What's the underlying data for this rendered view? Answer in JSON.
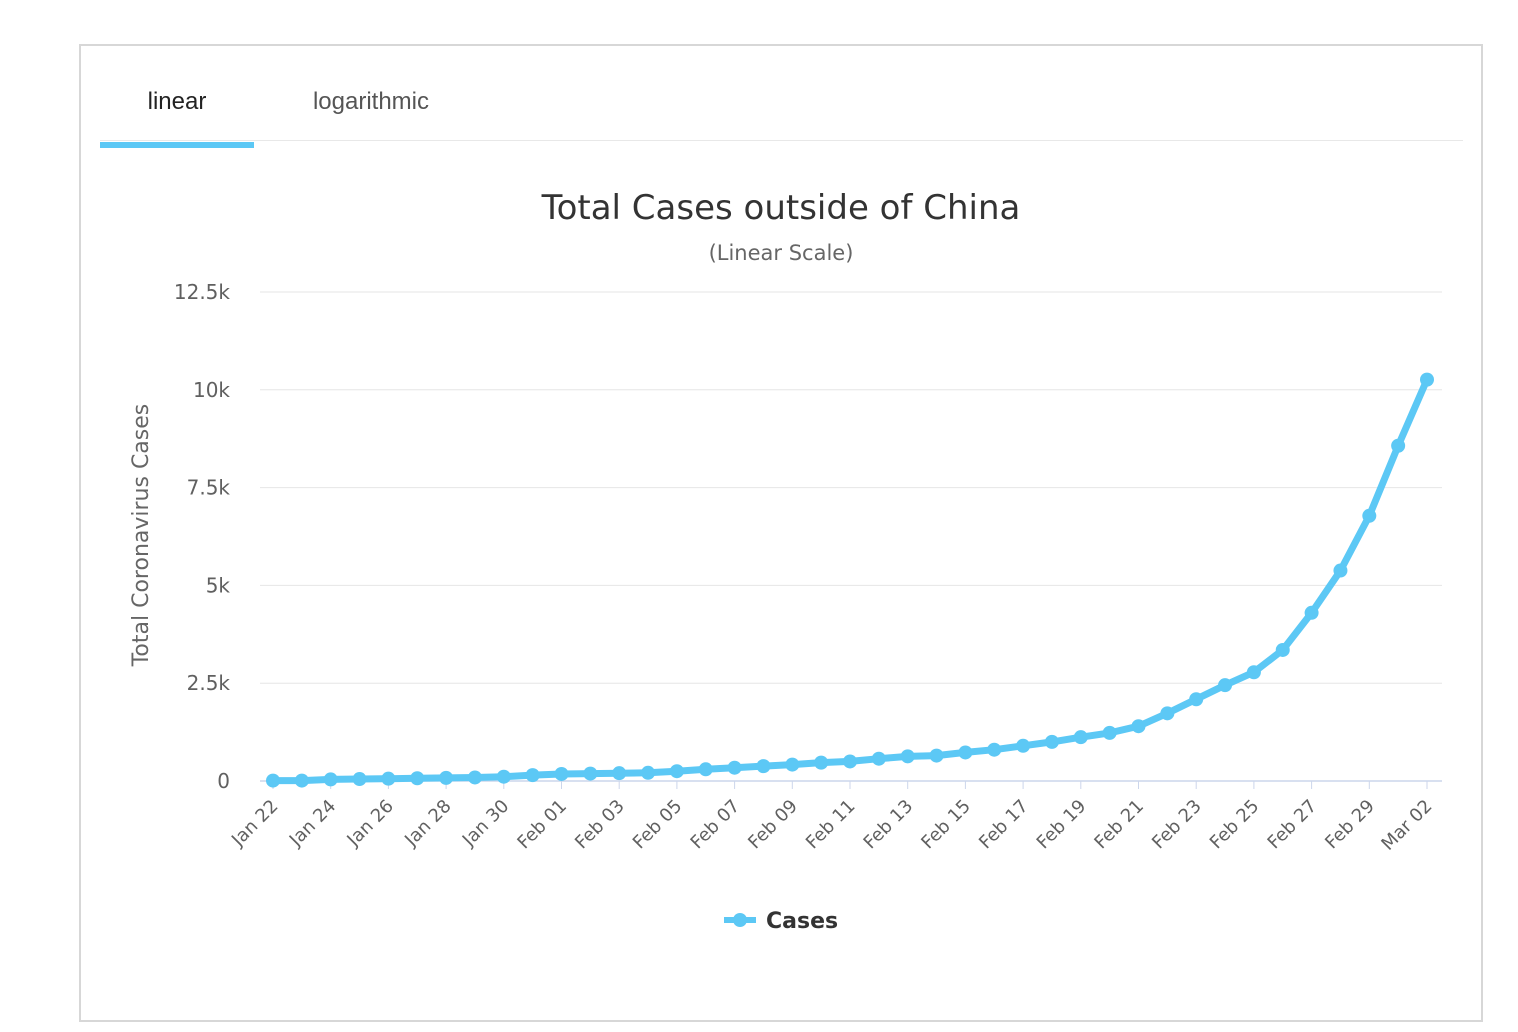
{
  "tabs": [
    {
      "label": "linear",
      "active": true
    },
    {
      "label": "logarithmic",
      "active": false
    }
  ],
  "colors": {
    "series": "#5cc8f5",
    "grid": "#e6e6e6",
    "accent": "#5cc8f5"
  },
  "chart_data": {
    "type": "line",
    "title": "Total Cases outside of China",
    "subtitle": "(Linear Scale)",
    "ylabel": "Total Coronavirus Cases",
    "xlabel": "",
    "ylim": [
      0,
      12500
    ],
    "yticks": [
      0,
      2500,
      5000,
      7500,
      10000,
      12500
    ],
    "ytick_labels": [
      "0",
      "2.5k",
      "5k",
      "7.5k",
      "10k",
      "12.5k"
    ],
    "x": [
      "Jan 22",
      "Jan 23",
      "Jan 24",
      "Jan 25",
      "Jan 26",
      "Jan 27",
      "Jan 28",
      "Jan 29",
      "Jan 30",
      "Jan 31",
      "Feb 01",
      "Feb 02",
      "Feb 03",
      "Feb 04",
      "Feb 05",
      "Feb 06",
      "Feb 07",
      "Feb 08",
      "Feb 09",
      "Feb 10",
      "Feb 11",
      "Feb 12",
      "Feb 13",
      "Feb 14",
      "Feb 15",
      "Feb 16",
      "Feb 17",
      "Feb 18",
      "Feb 19",
      "Feb 20",
      "Feb 21",
      "Feb 22",
      "Feb 23",
      "Feb 24",
      "Feb 25",
      "Feb 26",
      "Feb 27",
      "Feb 28",
      "Feb 29",
      "Mar 01",
      "Mar 02"
    ],
    "xtick_labels": [
      "Jan 22",
      "Jan 24",
      "Jan 26",
      "Jan 28",
      "Jan 30",
      "Feb 01",
      "Feb 03",
      "Feb 05",
      "Feb 07",
      "Feb 09",
      "Feb 11",
      "Feb 13",
      "Feb 15",
      "Feb 17",
      "Feb 19",
      "Feb 21",
      "Feb 23",
      "Feb 25",
      "Feb 27",
      "Feb 29",
      "Mar 02"
    ],
    "series": [
      {
        "name": "Cases",
        "values": [
          10,
          10,
          40,
          50,
          60,
          70,
          80,
          90,
          110,
          150,
          180,
          190,
          200,
          210,
          250,
          300,
          340,
          380,
          420,
          470,
          500,
          570,
          630,
          650,
          730,
          800,
          900,
          1000,
          1120,
          1230,
          1400,
          1730,
          2090,
          2450,
          2780,
          3350,
          4300,
          5380,
          6780,
          8570,
          10260
        ]
      }
    ],
    "legend": "bottom-center",
    "grid": true
  }
}
